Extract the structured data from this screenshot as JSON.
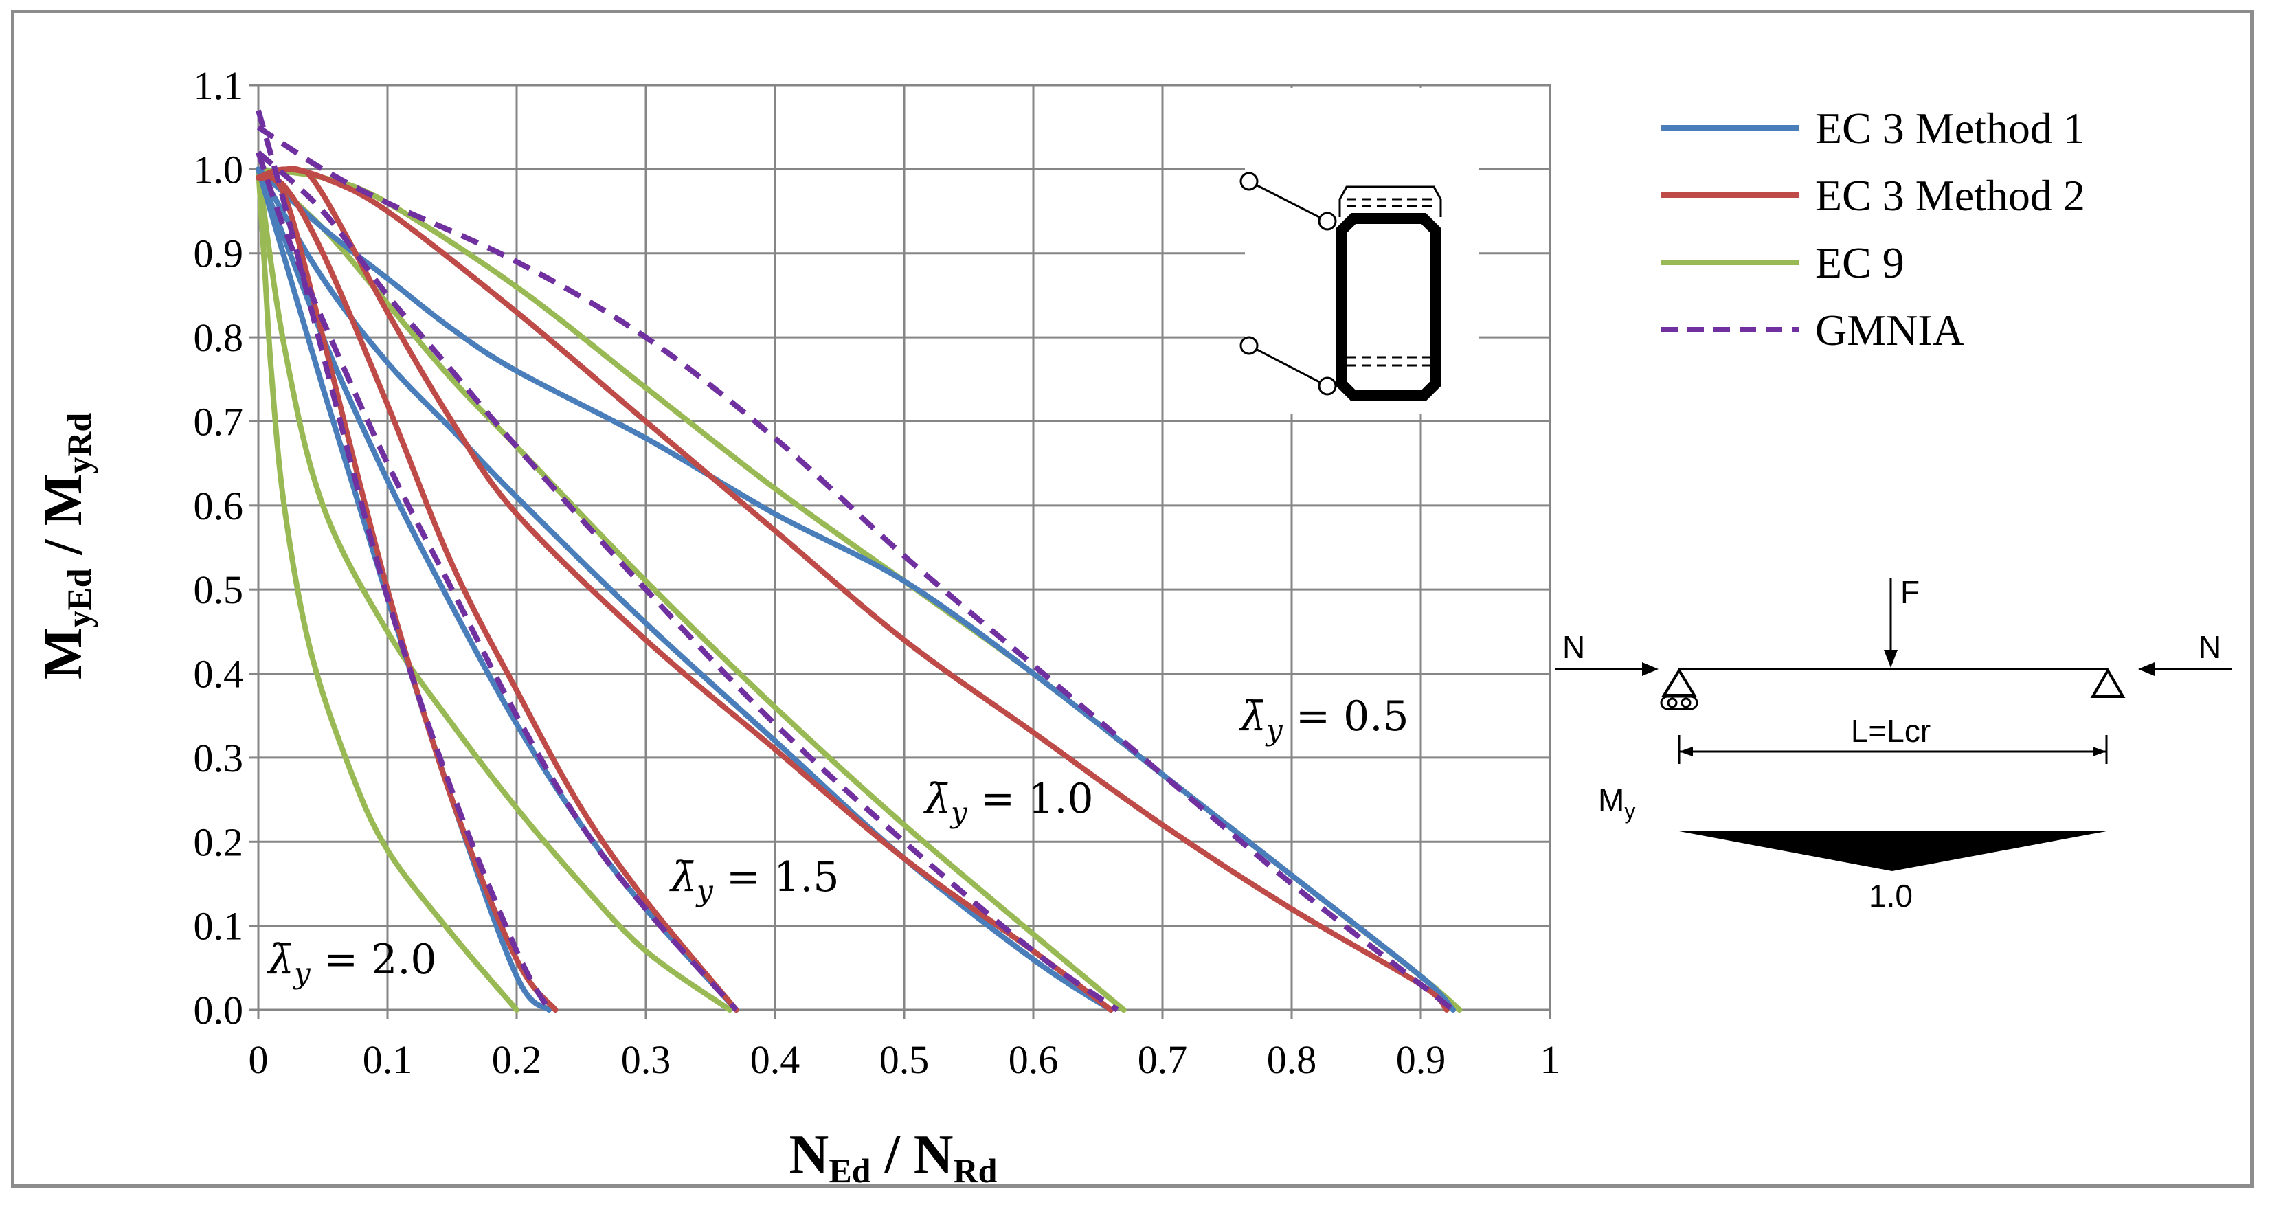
{
  "chart_data": {
    "type": "line",
    "xlabel": {
      "main": "N",
      "sub1": "Ed",
      "sep": " / ",
      "main2": "N",
      "sub2": "Rd"
    },
    "ylabel": {
      "main": "M",
      "sub1": "yEd",
      "sep": " / ",
      "main2": "M",
      "sub2": "yRd"
    },
    "xlim": [
      0,
      1
    ],
    "ylim": [
      0,
      1.1
    ],
    "xticks": [
      "0",
      "0.1",
      "0.2",
      "0.3",
      "0.4",
      "0.5",
      "0.6",
      "0.7",
      "0.8",
      "0.9",
      "1"
    ],
    "yticks": [
      "0.0",
      "0.1",
      "0.2",
      "0.3",
      "0.4",
      "0.5",
      "0.6",
      "0.7",
      "0.8",
      "0.9",
      "1.0",
      "1.1"
    ],
    "grid": true,
    "legend_position": "top-right",
    "legend": [
      {
        "label": "EC 3 Method 1",
        "color": "#4a7ebb",
        "dash": false
      },
      {
        "label": "EC 3 Method 2",
        "color": "#be4b48",
        "dash": false
      },
      {
        "label": "EC 9",
        "color": "#98b954",
        "dash": false
      },
      {
        "label": "GMNIA",
        "color": "#7030a0",
        "dash": true
      }
    ],
    "annotations": [
      {
        "symbol": "λ̄",
        "sub": "y",
        "text": " = 0.5"
      },
      {
        "symbol": "λ̄",
        "sub": "y",
        "text": " = 1.0"
      },
      {
        "symbol": "λ̄",
        "sub": "y",
        "text": " = 1.5"
      },
      {
        "symbol": "λ̄",
        "sub": "y",
        "text": " = 2.0"
      }
    ],
    "series": [
      {
        "group": "0.5",
        "method": "EC 3 Method 1",
        "x": [
          0,
          0.05,
          0.1,
          0.15,
          0.2,
          0.3,
          0.4,
          0.5,
          0.6,
          0.7,
          0.8,
          0.9,
          0.925
        ],
        "y": [
          1.0,
          0.93,
          0.87,
          0.81,
          0.76,
          0.68,
          0.59,
          0.51,
          0.4,
          0.28,
          0.16,
          0.04,
          0.0
        ]
      },
      {
        "group": "0.5",
        "method": "EC 3 Method 2",
        "x": [
          0,
          0.02,
          0.05,
          0.1,
          0.2,
          0.3,
          0.4,
          0.5,
          0.6,
          0.7,
          0.8,
          0.9,
          0.92
        ],
        "y": [
          0.99,
          1.0,
          0.99,
          0.95,
          0.83,
          0.7,
          0.57,
          0.44,
          0.33,
          0.22,
          0.12,
          0.03,
          0.0
        ]
      },
      {
        "group": "0.5",
        "method": "EC 9",
        "x": [
          0,
          0.05,
          0.1,
          0.2,
          0.3,
          0.4,
          0.5,
          0.6,
          0.7,
          0.8,
          0.9,
          0.93
        ],
        "y": [
          1.0,
          0.99,
          0.96,
          0.86,
          0.74,
          0.62,
          0.51,
          0.4,
          0.28,
          0.16,
          0.04,
          0.0
        ]
      },
      {
        "group": "0.5",
        "method": "GMNIA",
        "x": [
          0,
          0.05,
          0.1,
          0.2,
          0.3,
          0.4,
          0.5,
          0.6,
          0.7,
          0.8,
          0.9,
          0.925
        ],
        "y": [
          1.05,
          1.0,
          0.96,
          0.89,
          0.8,
          0.68,
          0.54,
          0.41,
          0.28,
          0.15,
          0.03,
          0.0
        ]
      },
      {
        "group": "1.0",
        "method": "EC 3 Method 1",
        "x": [
          0,
          0.05,
          0.1,
          0.15,
          0.2,
          0.3,
          0.4,
          0.5,
          0.6,
          0.66
        ],
        "y": [
          1.0,
          0.87,
          0.77,
          0.69,
          0.61,
          0.46,
          0.32,
          0.18,
          0.06,
          0.0
        ]
      },
      {
        "group": "1.0",
        "method": "EC 3 Method 2",
        "x": [
          0,
          0.03,
          0.05,
          0.1,
          0.15,
          0.2,
          0.3,
          0.4,
          0.5,
          0.6,
          0.66
        ],
        "y": [
          0.99,
          1.0,
          0.97,
          0.83,
          0.7,
          0.59,
          0.44,
          0.31,
          0.18,
          0.07,
          0.0
        ]
      },
      {
        "group": "1.0",
        "method": "EC 9",
        "x": [
          0,
          0.05,
          0.1,
          0.15,
          0.2,
          0.3,
          0.4,
          0.5,
          0.6,
          0.67
        ],
        "y": [
          1.0,
          0.93,
          0.84,
          0.75,
          0.67,
          0.51,
          0.36,
          0.22,
          0.09,
          0.0
        ]
      },
      {
        "group": "1.0",
        "method": "GMNIA",
        "x": [
          0,
          0.05,
          0.1,
          0.15,
          0.2,
          0.3,
          0.4,
          0.5,
          0.6,
          0.665
        ],
        "y": [
          1.02,
          0.95,
          0.85,
          0.76,
          0.67,
          0.5,
          0.34,
          0.2,
          0.07,
          0.0
        ]
      },
      {
        "group": "1.5",
        "method": "EC 3 Method 1",
        "x": [
          0,
          0.05,
          0.1,
          0.15,
          0.2,
          0.25,
          0.3,
          0.37
        ],
        "y": [
          1.0,
          0.8,
          0.63,
          0.48,
          0.34,
          0.22,
          0.12,
          0.0
        ]
      },
      {
        "group": "1.5",
        "method": "EC 3 Method 2",
        "x": [
          0,
          0.02,
          0.05,
          0.1,
          0.15,
          0.2,
          0.25,
          0.3,
          0.37
        ],
        "y": [
          0.99,
          0.98,
          0.9,
          0.72,
          0.53,
          0.38,
          0.24,
          0.13,
          0.0
        ]
      },
      {
        "group": "1.5",
        "method": "EC 9",
        "x": [
          0,
          0.02,
          0.05,
          0.1,
          0.15,
          0.2,
          0.25,
          0.3,
          0.365
        ],
        "y": [
          1.0,
          0.79,
          0.6,
          0.45,
          0.34,
          0.24,
          0.15,
          0.07,
          0.0
        ]
      },
      {
        "group": "1.5",
        "method": "GMNIA",
        "x": [
          0,
          0.02,
          0.05,
          0.1,
          0.15,
          0.2,
          0.25,
          0.3,
          0.37
        ],
        "y": [
          1.02,
          0.93,
          0.82,
          0.65,
          0.5,
          0.35,
          0.22,
          0.12,
          0.0
        ]
      },
      {
        "group": "2.0",
        "method": "EC 3 Method 1",
        "x": [
          0,
          0.05,
          0.1,
          0.15,
          0.2,
          0.225
        ],
        "y": [
          1.0,
          0.74,
          0.49,
          0.25,
          0.04,
          0.0
        ]
      },
      {
        "group": "2.0",
        "method": "EC 3 Method 2",
        "x": [
          0,
          0.02,
          0.05,
          0.1,
          0.15,
          0.2,
          0.23
        ],
        "y": [
          0.99,
          0.97,
          0.8,
          0.5,
          0.25,
          0.06,
          0.0
        ]
      },
      {
        "group": "2.0",
        "method": "EC 9",
        "x": [
          0,
          0.005,
          0.01,
          0.02,
          0.04,
          0.07,
          0.1,
          0.15,
          0.2
        ],
        "y": [
          1.0,
          0.88,
          0.76,
          0.6,
          0.43,
          0.29,
          0.19,
          0.09,
          0.0
        ]
      },
      {
        "group": "2.0",
        "method": "GMNIA",
        "x": [
          0,
          0.02,
          0.05,
          0.1,
          0.15,
          0.2,
          0.225
        ],
        "y": [
          1.07,
          0.96,
          0.78,
          0.49,
          0.26,
          0.07,
          0.0
        ]
      }
    ]
  },
  "schematic": {
    "force_top": "F",
    "force_left": "N",
    "force_right": "N",
    "span_label": "L=Lcr",
    "moment_label": "M",
    "moment_sub": "y",
    "moment_value": "1.0"
  }
}
